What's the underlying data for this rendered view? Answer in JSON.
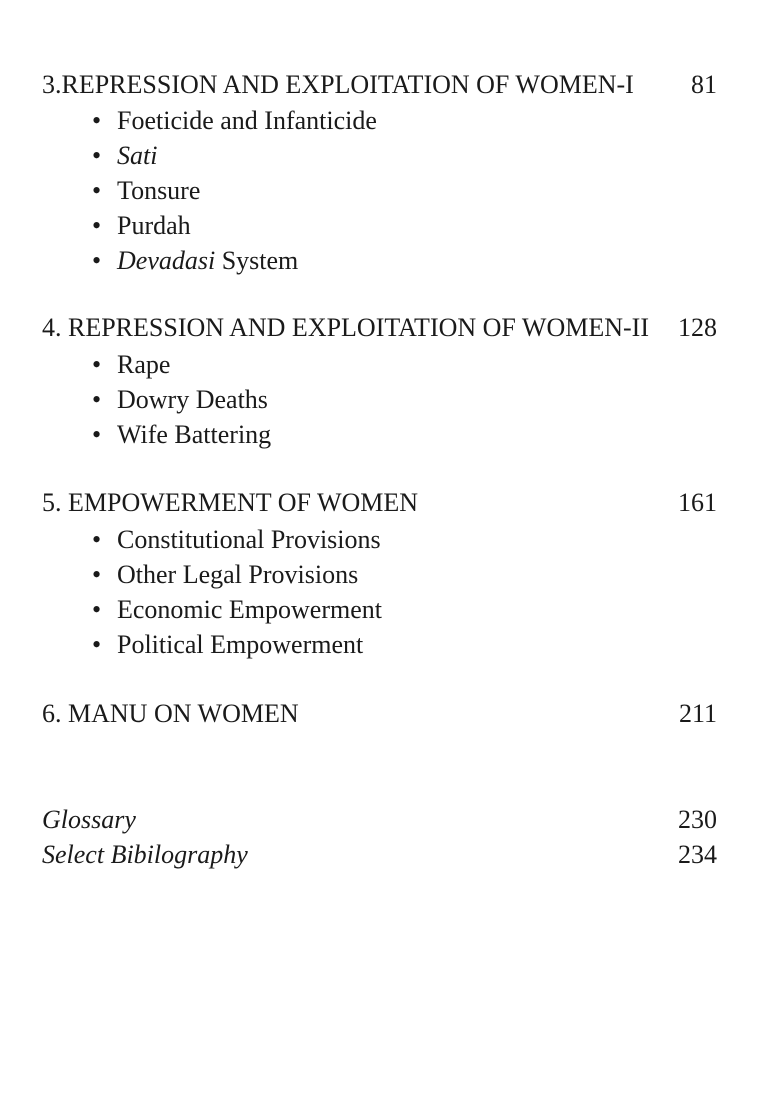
{
  "toc": {
    "chapters": [
      {
        "title": "3.REPRESSION AND EXPLOITATION OF WOMEN-I",
        "page": "81",
        "items": [
          {
            "italic": "",
            "text": "Foeticide and Infanticide"
          },
          {
            "italic": "Sati",
            "text": ""
          },
          {
            "italic": "",
            "text": "Tonsure"
          },
          {
            "italic": "",
            "text": "Purdah"
          },
          {
            "italic": "Devadasi",
            "text": " System"
          }
        ]
      },
      {
        "title": "4. REPRESSION AND EXPLOITATION OF WOMEN-II",
        "page": "128",
        "items": [
          {
            "italic": "",
            "text": "Rape"
          },
          {
            "italic": "",
            "text": "Dowry Deaths"
          },
          {
            "italic": "",
            "text": "Wife Battering"
          }
        ]
      },
      {
        "title": "5. EMPOWERMENT OF WOMEN",
        "page": "161",
        "items": [
          {
            "italic": "",
            "text": "Constitutional Provisions"
          },
          {
            "italic": "",
            "text": "Other Legal Provisions"
          },
          {
            "italic": "",
            "text": "Economic Empowerment"
          },
          {
            "italic": "",
            "text": "Political Empowerment"
          }
        ]
      },
      {
        "title": "6. MANU ON WOMEN",
        "page": "211",
        "items": []
      }
    ],
    "back_matter": [
      {
        "title": "Glossary",
        "page": "230"
      },
      {
        "title": "Select Bibilography",
        "page": "234"
      }
    ],
    "bullet": "•"
  }
}
